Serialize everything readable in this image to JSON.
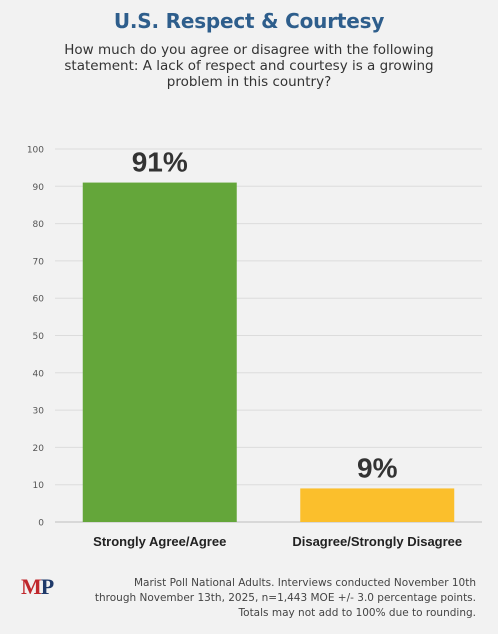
{
  "header": {
    "title": "U.S. Respect & Courtesy",
    "subtitle_lines": [
      "How much do you agree or disagree with the following",
      "statement: A lack of respect and courtesy is a growing",
      "problem in this country?"
    ]
  },
  "chart_data": {
    "type": "bar",
    "title": "U.S. Respect & Courtesy",
    "categories": [
      "Strongly Agree/Agree",
      "Disagree/Strongly Disagree"
    ],
    "values": [
      91,
      9
    ],
    "data_labels": [
      "91%",
      "9%"
    ],
    "colors": [
      "#64a63a",
      "#fbbf2c"
    ],
    "ylim": [
      0,
      100
    ],
    "yticks": [
      0,
      10,
      20,
      30,
      40,
      50,
      60,
      70,
      80,
      90,
      100
    ],
    "grid": true,
    "xlabel": "",
    "ylabel": ""
  },
  "footer": {
    "logo_text": "MP",
    "note_lines": [
      "Marist Poll National Adults. Interviews conducted November 10th",
      "through November 13th, 2025, n=1,443 MOE +/- 3.0 percentage points.",
      "Totals may not add to 100% due to rounding."
    ]
  },
  "colors": {
    "title": "#2e5e8c",
    "logo_m": "#c0282d",
    "logo_p": "#1f3a6a"
  }
}
